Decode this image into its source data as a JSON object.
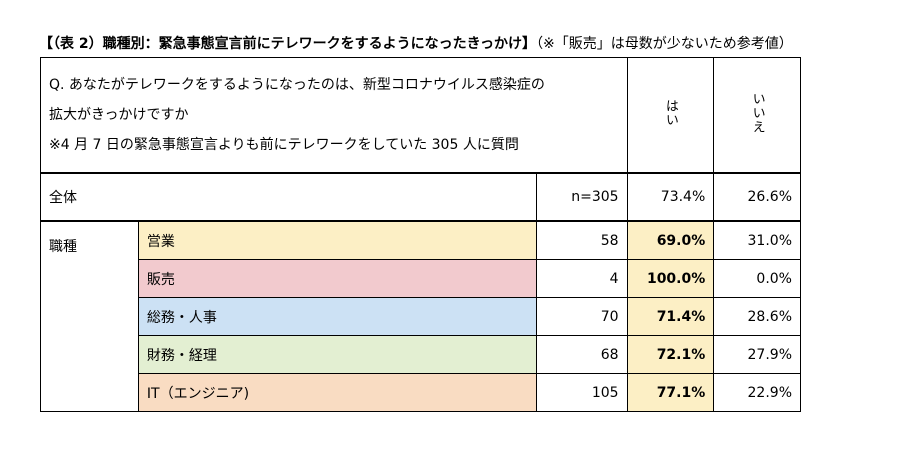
{
  "title": {
    "main": "【（表 2）職種別：緊急事態宣言前にテレワークをするようになったきっかけ】",
    "note": "（※「販売」は母数が少ないため参考値）"
  },
  "question": {
    "line1": "Q. あなたがテレワークをするようになったのは、新型コロナウイルス感染症の",
    "line2": "拡大がきっかけですか",
    "line3": "※4 月 7 日の緊急事態宣言よりも前にテレワークをしていた 305 人に質問"
  },
  "headers": {
    "yes": "はい",
    "no": "いいえ"
  },
  "total": {
    "label": "全体",
    "n": "n=305",
    "yes": "73.4%",
    "no": "26.6%"
  },
  "group_label": "職種",
  "rows": [
    {
      "label": "営業",
      "n": "58",
      "yes": "69.0%",
      "no": "31.0%"
    },
    {
      "label": "販売",
      "n": "4",
      "yes": "100.0%",
      "no": "0.0%"
    },
    {
      "label": "総務・人事",
      "n": "70",
      "yes": "71.4%",
      "no": "28.6%"
    },
    {
      "label": "財務・経理",
      "n": "68",
      "yes": "72.1%",
      "no": "27.9%"
    },
    {
      "label": "IT（エンジニア)",
      "n": "105",
      "yes": "77.1%",
      "no": "22.9%"
    }
  ],
  "colors": {
    "row_fills": [
      "#FCEFC5",
      "#F2CACE",
      "#CCE1F4",
      "#E3EFD2",
      "#F9DCC2"
    ],
    "highlight_fill": "#FCEFC5"
  }
}
